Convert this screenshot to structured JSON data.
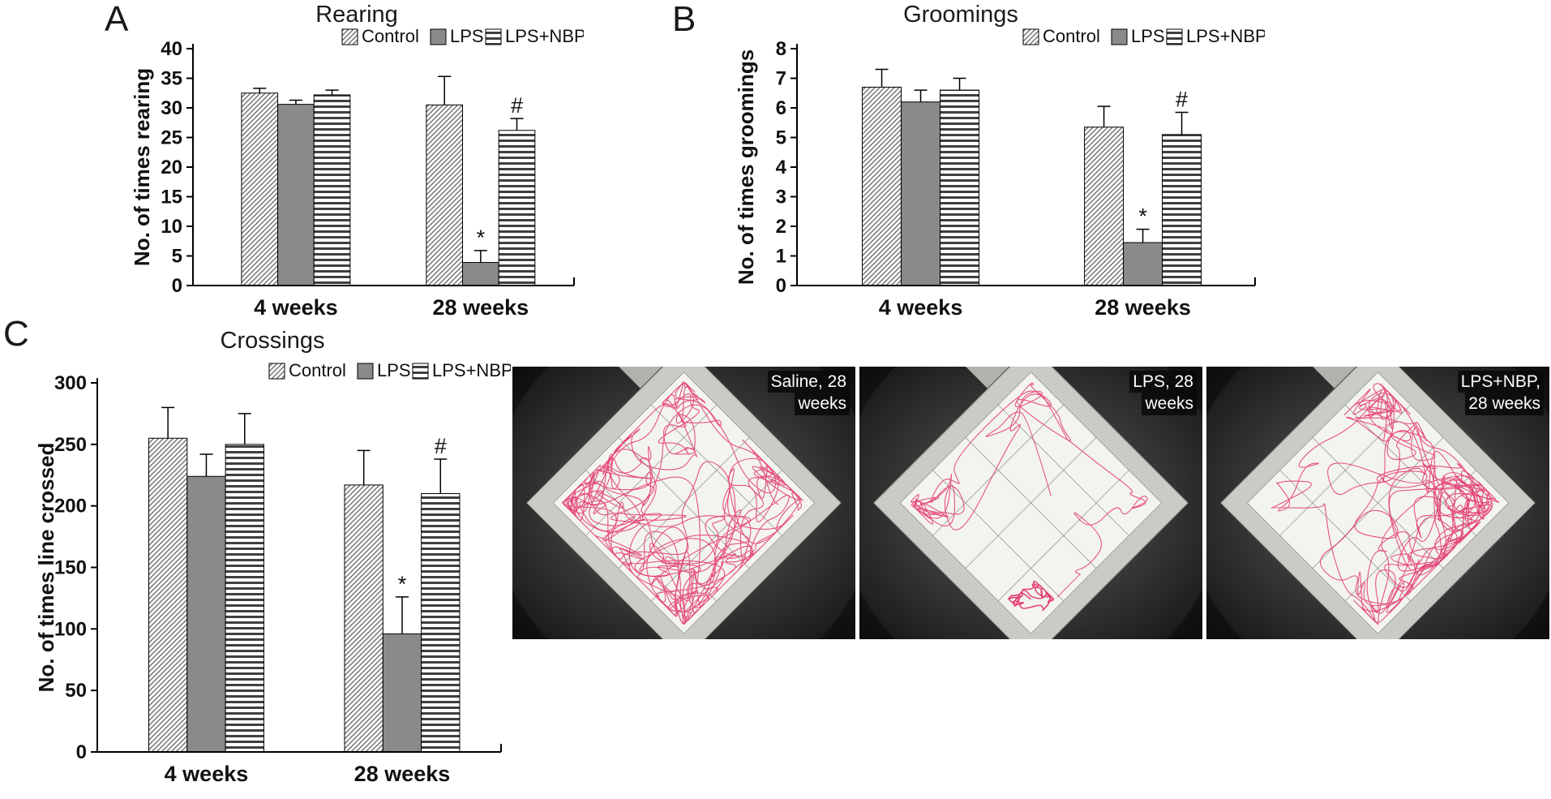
{
  "panels": {
    "a": {
      "letter": "A"
    },
    "b": {
      "letter": "B"
    },
    "c": {
      "letter": "C"
    }
  },
  "chart_data": [
    {
      "id": "rearing",
      "type": "bar",
      "title": "Rearing",
      "ylabel": "No. of times rearing",
      "ylim": [
        0,
        40
      ],
      "ytick_step": 5,
      "categories": [
        "4 weeks",
        "28 weeks"
      ],
      "legend_position": "top-right",
      "series": [
        {
          "name": "Control",
          "pattern": "diagonal",
          "values": [
            32.5,
            30.5
          ],
          "errors": [
            0.8,
            4.8
          ]
        },
        {
          "name": "LPS",
          "pattern": "solid",
          "values": [
            30.6,
            3.9
          ],
          "errors": [
            0.7,
            2.0
          ]
        },
        {
          "name": "LPS+NBP",
          "pattern": "horizontal",
          "values": [
            32.2,
            26.2
          ],
          "errors": [
            0.8,
            2.0
          ]
        }
      ],
      "annotations": [
        {
          "category_index": 1,
          "series_index": 1,
          "symbol": "*"
        },
        {
          "category_index": 1,
          "series_index": 2,
          "symbol": "#"
        }
      ]
    },
    {
      "id": "groomings",
      "type": "bar",
      "title": "Groomings",
      "ylabel": "No. of times groomings",
      "ylim": [
        0,
        8
      ],
      "ytick_step": 1,
      "categories": [
        "4 weeks",
        "28 weeks"
      ],
      "legend_position": "top-right",
      "series": [
        {
          "name": "Control",
          "pattern": "diagonal",
          "values": [
            6.7,
            5.35
          ],
          "errors": [
            0.6,
            0.7
          ]
        },
        {
          "name": "LPS",
          "pattern": "solid",
          "values": [
            6.2,
            1.45
          ],
          "errors": [
            0.4,
            0.45
          ]
        },
        {
          "name": "LPS+NBP",
          "pattern": "horizontal",
          "values": [
            6.6,
            5.1
          ],
          "errors": [
            0.4,
            0.75
          ]
        }
      ],
      "annotations": [
        {
          "category_index": 1,
          "series_index": 1,
          "symbol": "*"
        },
        {
          "category_index": 1,
          "series_index": 2,
          "symbol": "#"
        }
      ]
    },
    {
      "id": "crossings",
      "type": "bar",
      "title": "Crossings",
      "ylabel": "No. of times line crossed",
      "ylim": [
        0,
        300
      ],
      "ytick_step": 50,
      "categories": [
        "4 weeks",
        "28 weeks"
      ],
      "legend_position": "top-right",
      "series": [
        {
          "name": "Control",
          "pattern": "diagonal",
          "values": [
            255,
            217
          ],
          "errors": [
            25,
            28
          ]
        },
        {
          "name": "LPS",
          "pattern": "solid",
          "values": [
            224,
            96
          ],
          "errors": [
            18,
            30
          ]
        },
        {
          "name": "LPS+NBP",
          "pattern": "horizontal",
          "values": [
            250,
            210
          ],
          "errors": [
            25,
            28
          ]
        }
      ],
      "annotations": [
        {
          "category_index": 1,
          "series_index": 1,
          "symbol": "*"
        },
        {
          "category_index": 1,
          "series_index": 2,
          "symbol": "#"
        }
      ]
    }
  ],
  "track_images": [
    {
      "label_lines": [
        "Saline, 28",
        "weeks"
      ],
      "density": "high"
    },
    {
      "label_lines": [
        "LPS, 28",
        "weeks"
      ],
      "density": "low"
    },
    {
      "label_lines": [
        "LPS+NBP,",
        "28 weeks"
      ],
      "density": "medium"
    }
  ],
  "colors": {
    "track_path": "#e2356e",
    "bar_gray": "#8a8a8a",
    "hatch_line": "#6e6e6e",
    "stripe_line": "#3f3f3f",
    "axis": "#000000",
    "background": "#ffffff"
  }
}
